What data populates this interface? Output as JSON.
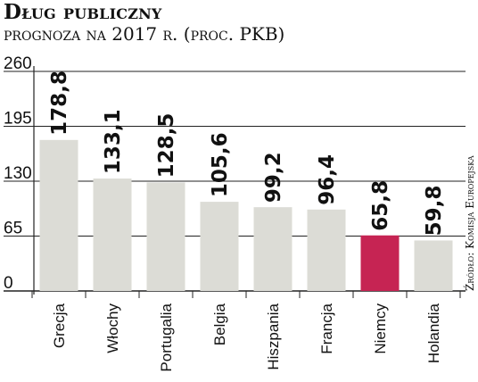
{
  "chart_data": {
    "type": "bar",
    "title": "Dług publiczny",
    "subtitle": "prognoza na 2017 r. (proc. PKB)",
    "categories": [
      "Grecja",
      "Włochy",
      "Portugalia",
      "Belgia",
      "Hiszpania",
      "Francja",
      "Niemcy",
      "Holandia"
    ],
    "values": [
      178.8,
      133.1,
      128.5,
      105.6,
      99.2,
      96.4,
      65.8,
      59.8
    ],
    "value_labels": [
      "178,8",
      "133,1",
      "128,5",
      "105,6",
      "99,2",
      "96,4",
      "65,8",
      "59,8"
    ],
    "highlight_index": 6,
    "ylim": [
      0,
      260
    ],
    "yticks": [
      0,
      65,
      130,
      195,
      260
    ],
    "ytick_labels": [
      "0",
      "65",
      "130",
      "195",
      "260"
    ],
    "grid": true,
    "xlabel": "",
    "ylabel": "",
    "bar_color": "#dcdcd6",
    "highlight_color": "#c62453",
    "grid_color": "#222222"
  },
  "source": "Źródło: Komisja Europejska"
}
